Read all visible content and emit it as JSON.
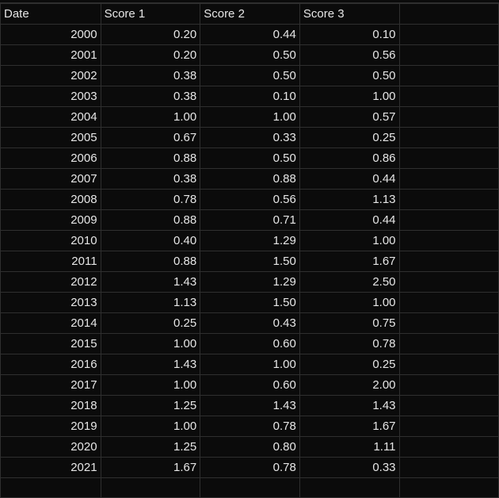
{
  "columns": [
    "Date",
    "Score 1",
    "Score 2",
    "Score 3",
    ""
  ],
  "rows": [
    [
      "2000",
      "0.20",
      "0.44",
      "0.10"
    ],
    [
      "2001",
      "0.20",
      "0.50",
      "0.56"
    ],
    [
      "2002",
      "0.38",
      "0.50",
      "0.50"
    ],
    [
      "2003",
      "0.38",
      "0.10",
      "1.00"
    ],
    [
      "2004",
      "1.00",
      "1.00",
      "0.57"
    ],
    [
      "2005",
      "0.67",
      "0.33",
      "0.25"
    ],
    [
      "2006",
      "0.88",
      "0.50",
      "0.86"
    ],
    [
      "2007",
      "0.38",
      "0.88",
      "0.44"
    ],
    [
      "2008",
      "0.78",
      "0.56",
      "1.13"
    ],
    [
      "2009",
      "0.88",
      "0.71",
      "0.44"
    ],
    [
      "2010",
      "0.40",
      "1.29",
      "1.00"
    ],
    [
      "2011",
      "0.88",
      "1.50",
      "1.67"
    ],
    [
      "2012",
      "1.43",
      "1.29",
      "2.50"
    ],
    [
      "2013",
      "1.13",
      "1.50",
      "1.00"
    ],
    [
      "2014",
      "0.25",
      "0.43",
      "0.75"
    ],
    [
      "2015",
      "1.00",
      "0.60",
      "0.78"
    ],
    [
      "2016",
      "1.43",
      "1.00",
      "0.25"
    ],
    [
      "2017",
      "1.00",
      "0.60",
      "2.00"
    ],
    [
      "2018",
      "1.25",
      "1.43",
      "1.43"
    ],
    [
      "2019",
      "1.00",
      "0.78",
      "1.67"
    ],
    [
      "2020",
      "1.25",
      "0.80",
      "1.11"
    ],
    [
      "2021",
      "1.67",
      "0.78",
      "0.33"
    ]
  ],
  "colors": {
    "background": "#0b0b0b",
    "gridline": "#2f2f2f",
    "text": "#e6e6e6"
  }
}
